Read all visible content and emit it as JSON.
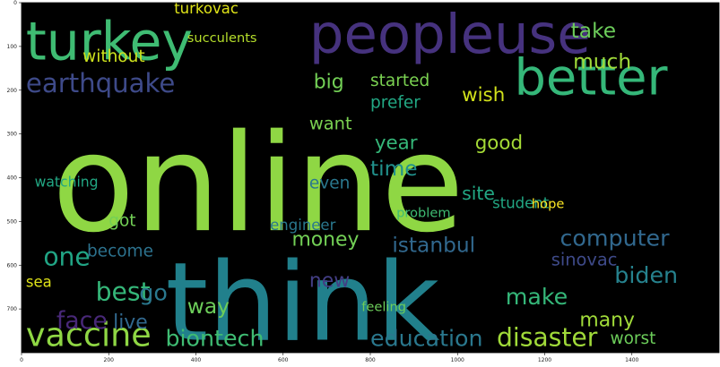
{
  "chart_data": {
    "type": "table",
    "kind": "wordcloud",
    "title": "",
    "xlabel": "",
    "ylabel": "",
    "background": "#000000",
    "palette": [
      "#440154",
      "#472e7c",
      "#3b528b",
      "#2c728e",
      "#21918c",
      "#28ae80",
      "#5ec962",
      "#addc30",
      "#fde725"
    ],
    "xlim": [
      0,
      1600
    ],
    "ylim": [
      800,
      0
    ],
    "x_ticks": [
      0,
      200,
      400,
      600,
      800,
      1000,
      1200,
      1400
    ],
    "y_ticks": [
      0,
      100,
      200,
      300,
      400,
      500,
      600,
      700
    ],
    "words": [
      {
        "text": "online",
        "x": 70,
        "y": 520,
        "size": 310,
        "color": "#8fd744"
      },
      {
        "text": "think",
        "x": 330,
        "y": 770,
        "size": 250,
        "color": "#21808c",
        "rotate": false
      },
      {
        "text": "turkey",
        "x": 10,
        "y": 130,
        "size": 120,
        "color": "#3fbc73"
      },
      {
        "text": "peopleuse",
        "x": 660,
        "y": 115,
        "size": 125,
        "color": "#46327e"
      },
      {
        "text": "better",
        "x": 1130,
        "y": 210,
        "size": 115,
        "color": "#35b779"
      },
      {
        "text": "earthquake",
        "x": 10,
        "y": 205,
        "size": 60,
        "color": "#3e4a89"
      },
      {
        "text": "vaccine",
        "x": 10,
        "y": 785,
        "size": 75,
        "color": "#8fd744"
      },
      {
        "text": "biontech",
        "x": 330,
        "y": 785,
        "size": 52,
        "color": "#3fbc73"
      },
      {
        "text": "education",
        "x": 800,
        "y": 785,
        "size": 52,
        "color": "#2a788e"
      },
      {
        "text": "disaster",
        "x": 1090,
        "y": 785,
        "size": 58,
        "color": "#a0da39"
      },
      {
        "text": "computer",
        "x": 1235,
        "y": 555,
        "size": 52,
        "color": "#31688e"
      },
      {
        "text": "biden",
        "x": 1360,
        "y": 640,
        "size": 52,
        "color": "#26828e"
      },
      {
        "text": "sinovac",
        "x": 1215,
        "y": 600,
        "size": 40,
        "color": "#3e4a89"
      },
      {
        "text": "istanbul",
        "x": 850,
        "y": 570,
        "size": 48,
        "color": "#31688e"
      },
      {
        "text": "best",
        "x": 170,
        "y": 680,
        "size": 58,
        "color": "#35b779"
      },
      {
        "text": "one",
        "x": 50,
        "y": 600,
        "size": 58,
        "color": "#21a585"
      },
      {
        "text": "face",
        "x": 80,
        "y": 745,
        "size": 55,
        "color": "#482878"
      },
      {
        "text": "live",
        "x": 210,
        "y": 745,
        "size": 45,
        "color": "#31688e"
      },
      {
        "text": "go",
        "x": 270,
        "y": 680,
        "size": 52,
        "color": "#2a788e"
      },
      {
        "text": "new",
        "x": 660,
        "y": 650,
        "size": 45,
        "color": "#433e85"
      },
      {
        "text": "make",
        "x": 1110,
        "y": 690,
        "size": 52,
        "color": "#35b779"
      },
      {
        "text": "many",
        "x": 1280,
        "y": 740,
        "size": 45,
        "color": "#a0da39"
      },
      {
        "text": "money",
        "x": 620,
        "y": 555,
        "size": 45,
        "color": "#73d056"
      },
      {
        "text": "much",
        "x": 1265,
        "y": 150,
        "size": 48,
        "color": "#a0da39"
      },
      {
        "text": "take",
        "x": 1260,
        "y": 80,
        "size": 48,
        "color": "#6ccd5a"
      },
      {
        "text": "big",
        "x": 670,
        "y": 195,
        "size": 45,
        "color": "#73d056"
      },
      {
        "text": "started",
        "x": 800,
        "y": 190,
        "size": 38,
        "color": "#7ad151"
      },
      {
        "text": "wish",
        "x": 1010,
        "y": 225,
        "size": 44,
        "color": "#d2e21b"
      },
      {
        "text": "prefer",
        "x": 800,
        "y": 240,
        "size": 38,
        "color": "#22a884"
      },
      {
        "text": "good",
        "x": 1040,
        "y": 335,
        "size": 44,
        "color": "#a5db36"
      },
      {
        "text": "time",
        "x": 800,
        "y": 395,
        "size": 48,
        "color": "#21918c"
      },
      {
        "text": "year",
        "x": 810,
        "y": 335,
        "size": 44,
        "color": "#35b779"
      },
      {
        "text": "want",
        "x": 660,
        "y": 290,
        "size": 40,
        "color": "#7ad151"
      },
      {
        "text": "site",
        "x": 1010,
        "y": 450,
        "size": 42,
        "color": "#22a884"
      },
      {
        "text": "even",
        "x": 660,
        "y": 425,
        "size": 38,
        "color": "#2a788e"
      },
      {
        "text": "without",
        "x": 140,
        "y": 135,
        "size": 38,
        "color": "#cde11d"
      },
      {
        "text": "turkovac",
        "x": 350,
        "y": 25,
        "size": 34,
        "color": "#dfe318"
      },
      {
        "text": "got",
        "x": 200,
        "y": 510,
        "size": 38,
        "color": "#73d056"
      },
      {
        "text": "become",
        "x": 150,
        "y": 580,
        "size": 38,
        "color": "#2c728e"
      },
      {
        "text": "way",
        "x": 380,
        "y": 710,
        "size": 48,
        "color": "#6ccd5a"
      },
      {
        "text": "worst",
        "x": 1350,
        "y": 780,
        "size": 38,
        "color": "#6ccd5a"
      },
      {
        "text": "watching",
        "x": 30,
        "y": 420,
        "size": 32,
        "color": "#22a884"
      },
      {
        "text": "feeling",
        "x": 780,
        "y": 705,
        "size": 30,
        "color": "#6ccd5a"
      },
      {
        "text": "student",
        "x": 1080,
        "y": 470,
        "size": 34,
        "color": "#22a884"
      },
      {
        "text": "problem",
        "x": 860,
        "y": 490,
        "size": 30,
        "color": "#3fbc73"
      },
      {
        "text": "hope",
        "x": 1170,
        "y": 470,
        "size": 30,
        "color": "#fde725"
      },
      {
        "text": "sea",
        "x": 10,
        "y": 650,
        "size": 34,
        "color": "#dfe318"
      },
      {
        "text": "engineer",
        "x": 570,
        "y": 520,
        "size": 34,
        "color": "#2a788e"
      },
      {
        "text": "succulents",
        "x": 380,
        "y": 90,
        "size": 30,
        "color": "#b5de2b"
      },
      {
        "text": "started",
        "x": 0,
        "y": 0,
        "size": 0,
        "color": "#000000",
        "hidden": true
      }
    ]
  }
}
